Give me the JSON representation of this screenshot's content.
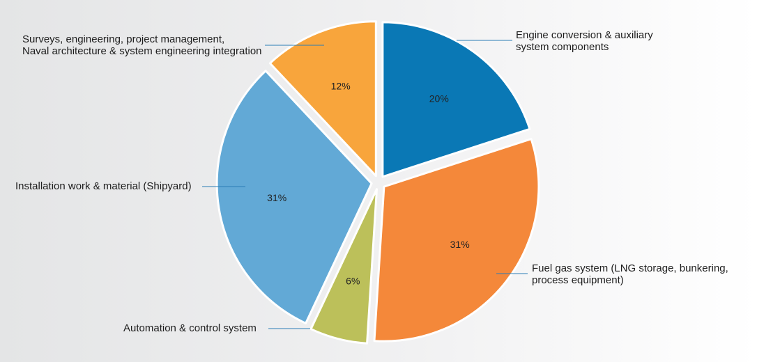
{
  "chart_data": {
    "type": "pie",
    "categories": [
      "Engine conversion & auxiliary\nsystem components",
      "Fuel gas system (LNG storage, bunkering,\nprocess equipment)",
      "Automation & control system",
      "Installation work & material (Shipyard)",
      "Surveys, engineering, project management,\nNaval architecture & system engineering integration"
    ],
    "values": [
      20,
      31,
      6,
      31,
      12
    ],
    "value_labels": [
      "20%",
      "31%",
      "6%",
      "31%",
      "12%"
    ],
    "colors": [
      "#0a78b5",
      "#f4883a",
      "#bcc05a",
      "#62a9d6",
      "#f8a53c"
    ]
  }
}
